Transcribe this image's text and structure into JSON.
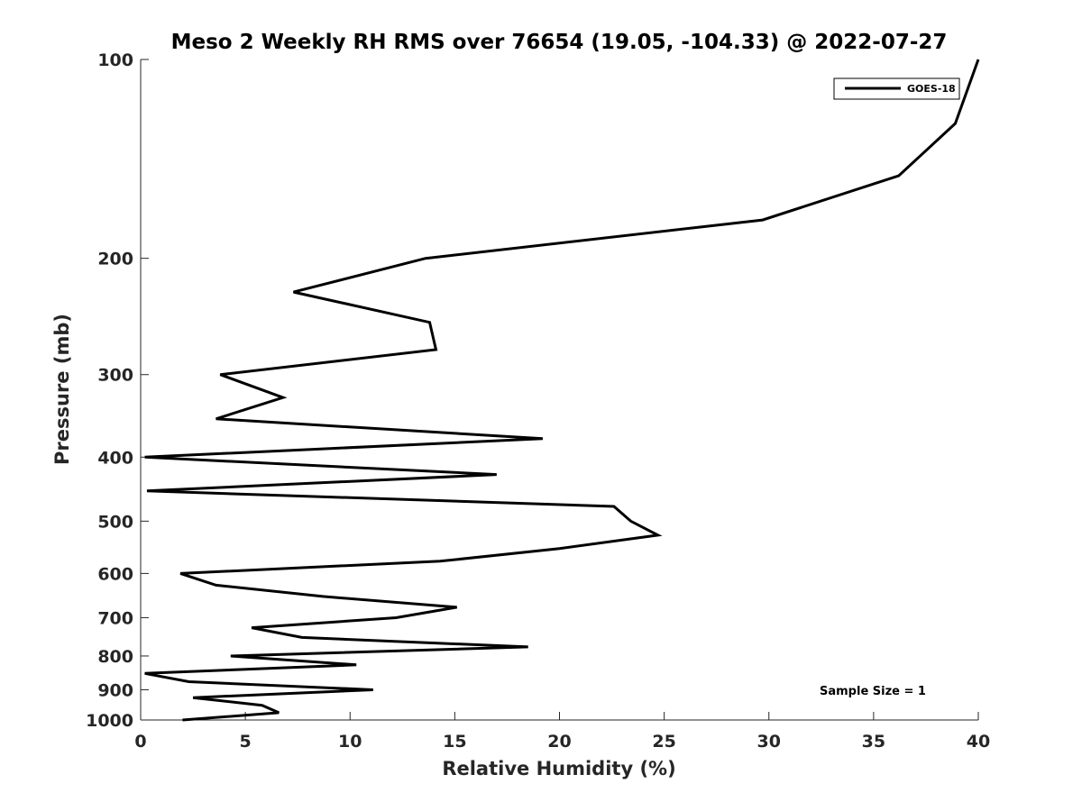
{
  "chart_data": {
    "type": "line",
    "title": "Meso 2 Weekly RH RMS over 76654 (19.05, -104.33) @ 2022-07-27",
    "xlabel": "Relative Humidity (%)",
    "ylabel": "Pressure (mb)",
    "xlim": [
      0,
      40
    ],
    "ylim": [
      100,
      1000
    ],
    "y_scale": "log",
    "y_reversed": true,
    "x_ticks": [
      0,
      5,
      10,
      15,
      20,
      25,
      30,
      35,
      40
    ],
    "y_ticks": [
      100,
      200,
      300,
      400,
      500,
      600,
      700,
      800,
      900,
      1000
    ],
    "grid": false,
    "legend_position": "top-right",
    "annotation": "Sample Size = 1",
    "series": [
      {
        "name": "GOES-18",
        "color": "#000000",
        "points": [
          {
            "p": 1000,
            "rh": 2.0
          },
          {
            "p": 975,
            "rh": 6.6
          },
          {
            "p": 950,
            "rh": 5.8
          },
          {
            "p": 925,
            "rh": 2.5
          },
          {
            "p": 900,
            "rh": 11.1
          },
          {
            "p": 875,
            "rh": 2.3
          },
          {
            "p": 850,
            "rh": 0.2
          },
          {
            "p": 825,
            "rh": 10.3
          },
          {
            "p": 800,
            "rh": 4.3
          },
          {
            "p": 775,
            "rh": 18.5
          },
          {
            "p": 750,
            "rh": 7.7
          },
          {
            "p": 725,
            "rh": 5.3
          },
          {
            "p": 700,
            "rh": 12.2
          },
          {
            "p": 675,
            "rh": 15.1
          },
          {
            "p": 650,
            "rh": 8.7
          },
          {
            "p": 625,
            "rh": 3.6
          },
          {
            "p": 600,
            "rh": 1.9
          },
          {
            "p": 575,
            "rh": 14.3
          },
          {
            "p": 550,
            "rh": 20.0
          },
          {
            "p": 525,
            "rh": 24.7
          },
          {
            "p": 500,
            "rh": 23.4
          },
          {
            "p": 475,
            "rh": 22.6
          },
          {
            "p": 450,
            "rh": 0.3
          },
          {
            "p": 425,
            "rh": 17.0
          },
          {
            "p": 400,
            "rh": 0.2
          },
          {
            "p": 375,
            "rh": 19.2
          },
          {
            "p": 350,
            "rh": 3.6
          },
          {
            "p": 325,
            "rh": 6.8
          },
          {
            "p": 300,
            "rh": 3.8
          },
          {
            "p": 275,
            "rh": 14.1
          },
          {
            "p": 250,
            "rh": 13.8
          },
          {
            "p": 225,
            "rh": 7.3
          },
          {
            "p": 200,
            "rh": 13.6
          },
          {
            "p": 175,
            "rh": 29.7
          },
          {
            "p": 150,
            "rh": 36.2
          },
          {
            "p": 125,
            "rh": 38.9
          },
          {
            "p": 100,
            "rh": 40.0
          }
        ]
      }
    ]
  }
}
